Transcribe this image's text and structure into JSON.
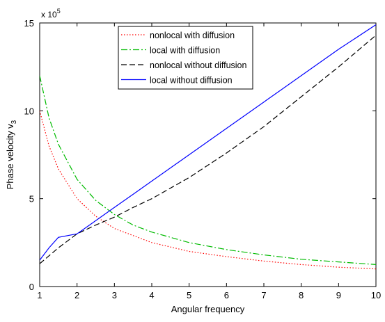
{
  "chart_data": {
    "type": "line",
    "xlabel": "Angular frequency",
    "ylabel": "Phase velocity v",
    "ylabel_subscript": "3",
    "y_multiplier": "x 10",
    "y_multiplier_exp": "5",
    "xlim": [
      1,
      10
    ],
    "ylim": [
      0,
      15
    ],
    "xticks": [
      1,
      2,
      3,
      4,
      5,
      6,
      7,
      8,
      9,
      10
    ],
    "yticks": [
      0,
      5,
      10,
      15
    ],
    "grid": false,
    "legend_position": "top-center",
    "x": [
      1,
      1.25,
      1.5,
      2,
      2.5,
      3,
      3.5,
      4,
      5,
      6,
      7,
      8,
      9,
      10
    ],
    "series": [
      {
        "name": "nonlocal with diffusion",
        "color": "#ff0000",
        "dash": "dotted",
        "values": [
          10.0,
          8.0,
          6.7,
          5.0,
          4.0,
          3.3,
          2.9,
          2.5,
          2.0,
          1.7,
          1.45,
          1.25,
          1.1,
          1.0
        ]
      },
      {
        "name": "local with diffusion",
        "color": "#00bb00",
        "dash": "dashdot",
        "values": [
          12.0,
          9.6,
          8.1,
          6.1,
          4.9,
          4.1,
          3.5,
          3.1,
          2.5,
          2.1,
          1.8,
          1.55,
          1.4,
          1.25
        ]
      },
      {
        "name": "nonlocal without diffusion",
        "color": "#000000",
        "dash": "dashed",
        "values": [
          1.3,
          1.75,
          2.2,
          3.0,
          3.5,
          3.95,
          4.5,
          5.0,
          6.2,
          7.6,
          9.1,
          10.8,
          12.5,
          14.3
        ]
      },
      {
        "name": "local without diffusion",
        "color": "#0000ff",
        "dash": "solid",
        "values": [
          1.5,
          2.2,
          2.8,
          3.0,
          3.75,
          4.5,
          5.25,
          6.0,
          7.5,
          9.0,
          10.5,
          12.0,
          13.5,
          14.9
        ]
      }
    ]
  }
}
